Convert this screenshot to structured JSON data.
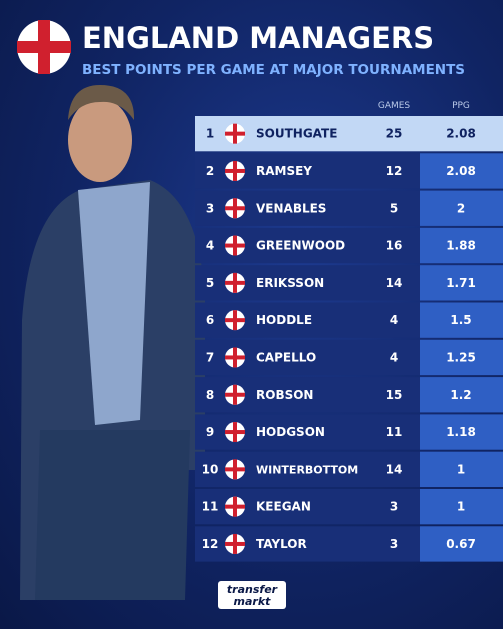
{
  "header": {
    "title": "ENGLAND MANAGERS",
    "subtitle": "BEST POINTS PER GAME AT MAJOR TOURNAMENTS"
  },
  "table": {
    "columns": [
      "GAMES",
      "PPG"
    ],
    "rows": [
      [
        1,
        "SOUTHGATE",
        25,
        2.08
      ],
      [
        2,
        "RAMSEY",
        12,
        2.08
      ],
      [
        3,
        "VENABLES",
        5,
        2
      ],
      [
        4,
        "GREENWOOD",
        16,
        1.88
      ],
      [
        5,
        "ERIKSSON",
        14,
        1.71
      ],
      [
        6,
        "HODDLE",
        4,
        1.5
      ],
      [
        7,
        "CAPELLO",
        4,
        1.25
      ],
      [
        8,
        "ROBSON",
        15,
        1.2
      ],
      [
        9,
        "HODGSON",
        11,
        1.18
      ],
      [
        10,
        "WINTERBOTTOM",
        14,
        1
      ],
      [
        11,
        "KEEGAN",
        3,
        1
      ],
      [
        12,
        "TAYLOR",
        3,
        0.67
      ]
    ]
  },
  "footer": {
    "logo_top": "transfer",
    "logo_bottom": "markt"
  }
}
